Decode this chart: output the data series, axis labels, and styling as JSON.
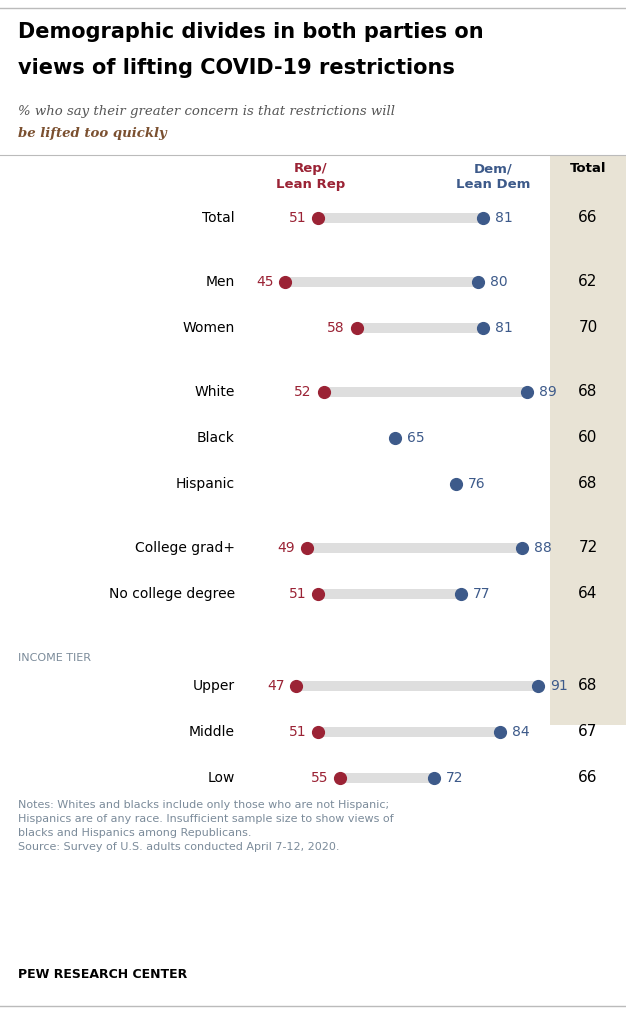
{
  "title_line1": "Demographic divides in both parties on",
  "title_line2": "views of lifting COVID-19 restrictions",
  "subtitle_normal": "% who say their greater concern is that restrictions will",
  "subtitle_bold": "be lifted too quickly",
  "col_header_rep": "Rep/\nLean Rep",
  "col_header_dem": "Dem/\nLean Dem",
  "col_header_total": "Total",
  "rows": [
    {
      "label": "Total",
      "rep": 51,
      "dem": 81,
      "total": 66,
      "has_rep": true,
      "section_gap_before": false,
      "is_section_header": false
    },
    {
      "label": "Men",
      "rep": 45,
      "dem": 80,
      "total": 62,
      "has_rep": true,
      "section_gap_before": true,
      "is_section_header": false
    },
    {
      "label": "Women",
      "rep": 58,
      "dem": 81,
      "total": 70,
      "has_rep": true,
      "section_gap_before": false,
      "is_section_header": false
    },
    {
      "label": "White",
      "rep": 52,
      "dem": 89,
      "total": 68,
      "has_rep": true,
      "section_gap_before": true,
      "is_section_header": false
    },
    {
      "label": "Black",
      "rep": null,
      "dem": 65,
      "total": 60,
      "has_rep": false,
      "section_gap_before": false,
      "is_section_header": false
    },
    {
      "label": "Hispanic",
      "rep": null,
      "dem": 76,
      "total": 68,
      "has_rep": false,
      "section_gap_before": false,
      "is_section_header": false
    },
    {
      "label": "College grad+",
      "rep": 49,
      "dem": 88,
      "total": 72,
      "has_rep": true,
      "section_gap_before": true,
      "is_section_header": false
    },
    {
      "label": "No college degree",
      "rep": 51,
      "dem": 77,
      "total": 64,
      "has_rep": true,
      "section_gap_before": false,
      "is_section_header": false
    },
    {
      "label": "INCOME TIER",
      "rep": null,
      "dem": null,
      "total": null,
      "has_rep": false,
      "section_gap_before": true,
      "is_section_header": true
    },
    {
      "label": "Upper",
      "rep": 47,
      "dem": 91,
      "total": 68,
      "has_rep": true,
      "section_gap_before": false,
      "is_section_header": false
    },
    {
      "label": "Middle",
      "rep": 51,
      "dem": 84,
      "total": 67,
      "has_rep": true,
      "section_gap_before": false,
      "is_section_header": false
    },
    {
      "label": "Low",
      "rep": 55,
      "dem": 72,
      "total": 66,
      "has_rep": true,
      "section_gap_before": false,
      "is_section_header": false
    }
  ],
  "rep_color": "#9B2335",
  "dem_color": "#3D5A8A",
  "bar_color": "#DEDEDE",
  "total_bg_color": "#E8E3D5",
  "rep_header_color": "#9B2335",
  "dem_header_color": "#3D5A8A",
  "notes_color": "#7B8B9A",
  "notes_text": "Notes: Whites and blacks include only those who are not Hispanic;\nHispanics are of any race. Insufficient sample size to show views of\nblacks and Hispanics among Republicans.\nSource: Survey of U.S. adults conducted April 7-12, 2020.",
  "footer_text": "PEW RESEARCH CENTER",
  "section_header_color": "#7B8B9A",
  "dot_size": 72,
  "x_min": 40,
  "x_max": 95
}
